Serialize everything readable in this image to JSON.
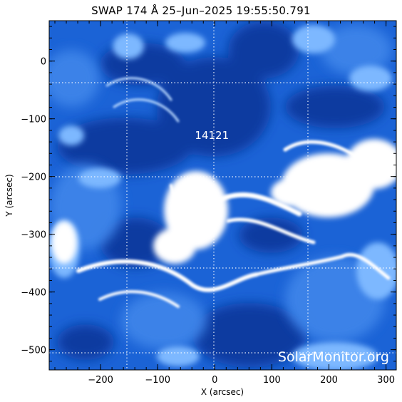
{
  "title": "SWAP 174 Å 25–Jun–2025 19:55:50.791",
  "x_axis": {
    "label": "X (arcsec)",
    "ticks": [
      -200,
      -100,
      0,
      100,
      200,
      300
    ],
    "range": [
      -290,
      318
    ]
  },
  "y_axis": {
    "label": "Y (arcsec)",
    "ticks": [
      0,
      -100,
      -200,
      -300,
      -400,
      -500
    ],
    "range": [
      -535,
      70
    ]
  },
  "active_region": {
    "label": "14121",
    "x": -5,
    "y": -135
  },
  "watermark": "SolarMonitor.org",
  "colors": {
    "deep": "#0a3aa0",
    "mid": "#1b63d6",
    "light": "#6fb0ff",
    "bright": "#ffffff",
    "grid": "#ffffff"
  }
}
